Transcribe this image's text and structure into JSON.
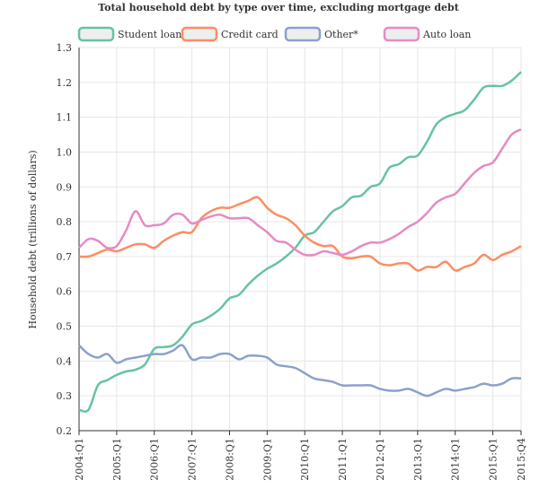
{
  "chart_data": {
    "type": "line",
    "title": "Total household debt by type over time, excluding mortgage debt",
    "y_label": "Household debt (trillions of dollars)",
    "categories": [
      "2004:Q1",
      null,
      null,
      null,
      "2005:Q1",
      null,
      null,
      null,
      "2006:Q1",
      null,
      null,
      null,
      "2007:Q1",
      null,
      null,
      null,
      "2008:Q1",
      null,
      null,
      null,
      "2009:Q1",
      null,
      null,
      null,
      "2010:Q1",
      null,
      null,
      null,
      "2011:Q1",
      null,
      null,
      null,
      "2012:Q1",
      null,
      null,
      null,
      "2013:Q1",
      null,
      null,
      null,
      "2014:Q1",
      null,
      null,
      null,
      "2015:Q1",
      null,
      null,
      "2015:Q4"
    ],
    "series": [
      {
        "name": "Student loan",
        "color": "#66c2a5",
        "values": [
          0.26,
          0.26,
          0.33,
          0.345,
          0.36,
          0.37,
          0.375,
          0.39,
          0.435,
          0.44,
          0.445,
          0.47,
          0.505,
          0.515,
          0.53,
          0.55,
          0.58,
          0.59,
          0.62,
          0.645,
          0.665,
          0.68,
          0.7,
          0.725,
          0.76,
          0.77,
          0.8,
          0.83,
          0.845,
          0.87,
          0.875,
          0.9,
          0.91,
          0.955,
          0.965,
          0.985,
          0.99,
          1.03,
          1.08,
          1.1,
          1.11,
          1.12,
          1.15,
          1.185,
          1.19,
          1.19,
          1.205,
          1.23
        ]
      },
      {
        "name": "Credit card",
        "color": "#fc8d62",
        "values": [
          0.7,
          0.7,
          0.71,
          0.72,
          0.715,
          0.725,
          0.735,
          0.735,
          0.725,
          0.745,
          0.76,
          0.77,
          0.77,
          0.81,
          0.83,
          0.84,
          0.84,
          0.85,
          0.86,
          0.87,
          0.84,
          0.82,
          0.81,
          0.79,
          0.76,
          0.74,
          0.73,
          0.73,
          0.7,
          0.695,
          0.7,
          0.7,
          0.68,
          0.675,
          0.68,
          0.68,
          0.66,
          0.67,
          0.67,
          0.685,
          0.66,
          0.67,
          0.68,
          0.705,
          0.69,
          0.705,
          0.715,
          0.73
        ]
      },
      {
        "name": "Other*",
        "color": "#8da0cb",
        "values": [
          0.445,
          0.42,
          0.41,
          0.42,
          0.395,
          0.405,
          0.41,
          0.415,
          0.42,
          0.42,
          0.43,
          0.445,
          0.405,
          0.41,
          0.41,
          0.42,
          0.42,
          0.405,
          0.415,
          0.415,
          0.41,
          0.39,
          0.385,
          0.38,
          0.365,
          0.35,
          0.345,
          0.34,
          0.33,
          0.33,
          0.33,
          0.33,
          0.32,
          0.315,
          0.315,
          0.32,
          0.31,
          0.3,
          0.31,
          0.32,
          0.315,
          0.32,
          0.325,
          0.335,
          0.33,
          0.335,
          0.35,
          0.35
        ]
      },
      {
        "name": "Auto loan",
        "color": "#e78ac3",
        "values": [
          0.725,
          0.75,
          0.745,
          0.725,
          0.73,
          0.775,
          0.83,
          0.79,
          0.79,
          0.795,
          0.82,
          0.82,
          0.795,
          0.805,
          0.815,
          0.82,
          0.81,
          0.81,
          0.81,
          0.79,
          0.77,
          0.745,
          0.74,
          0.72,
          0.705,
          0.705,
          0.715,
          0.71,
          0.705,
          0.715,
          0.73,
          0.74,
          0.74,
          0.75,
          0.765,
          0.785,
          0.8,
          0.825,
          0.855,
          0.87,
          0.88,
          0.91,
          0.94,
          0.96,
          0.97,
          1.01,
          1.05,
          1.065
        ]
      }
    ],
    "ylim": [
      0.2,
      1.3
    ],
    "yticks": [
      0.2,
      0.3,
      0.4,
      0.5,
      0.6,
      0.7,
      0.8,
      0.9,
      {
        "value": 1,
        "label": "1.0"
      },
      1.1,
      1.2,
      1.3
    ],
    "grid": true
  }
}
